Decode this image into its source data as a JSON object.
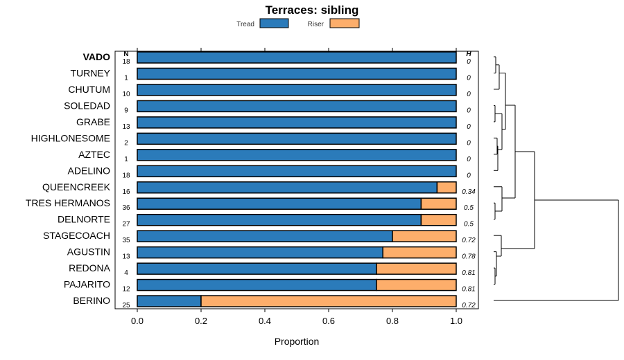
{
  "chart_data": {
    "type": "bar",
    "orientation": "horizontal",
    "stacked": true,
    "title": "Terraces: sibling",
    "xlabel": "Proportion",
    "xlim": [
      -0.08,
      1.08
    ],
    "xticks": [
      "0.0",
      "0.2",
      "0.4",
      "0.6",
      "0.8",
      "1.0"
    ],
    "xtick_values": [
      0,
      0.2,
      0.4,
      0.6,
      0.8,
      1.0
    ],
    "n_header": "N",
    "h_header": "H",
    "highlight": "VADO",
    "legend": [
      {
        "name": "Tread",
        "color": "#2b7bba"
      },
      {
        "name": "Riser",
        "color": "#fdae6b"
      }
    ],
    "categories": [
      "VADO",
      "TURNEY",
      "CHUTUM",
      "SOLEDAD",
      "GRABE",
      "HIGHLONESOME",
      "AZTEC",
      "ADELINO",
      "QUEENCREEK",
      "TRES HERMANOS",
      "DELNORTE",
      "STAGECOACH",
      "AGUSTIN",
      "REDONA",
      "PAJARITO",
      "BERINO"
    ],
    "tread": [
      1.0,
      1.0,
      1.0,
      1.0,
      1.0,
      1.0,
      1.0,
      1.0,
      0.94,
      0.89,
      0.89,
      0.8,
      0.77,
      0.75,
      0.75,
      0.2
    ],
    "n": [
      "18",
      "1",
      "10",
      "9",
      "13",
      "2",
      "1",
      "18",
      "16",
      "36",
      "27",
      "35",
      "13",
      "4",
      "12",
      "25"
    ],
    "h": [
      "0",
      "0",
      "0",
      "0",
      "0",
      "0",
      "0",
      "0",
      "0.34",
      "0.5",
      "0.5",
      "0.72",
      "0.78",
      "0.81",
      "0.81",
      "0.72"
    ]
  }
}
